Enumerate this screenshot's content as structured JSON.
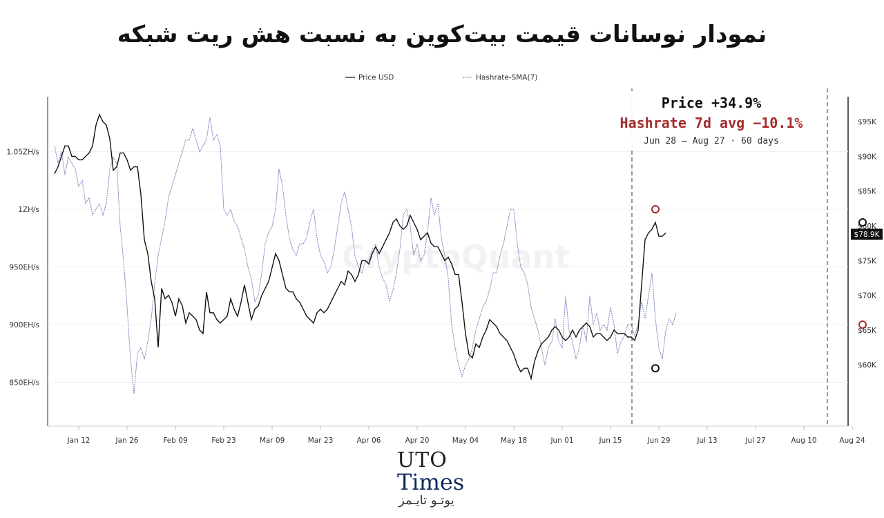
{
  "title": "نمودار نوسانات قیمت بیت‌کوین به نسبت هش ریت شبکه",
  "watermark": "CryptoQuant",
  "logo": {
    "line1": "UTO",
    "line2": "Times",
    "line3": "یوتـو تایـمز"
  },
  "annotations": {
    "price_change": "Price +34.9%",
    "hashrate_change": "Hashrate 7d avg −10.1%",
    "range": "Jun 28 – Aug 27 · 60 days",
    "price_badge": "$78.9K"
  },
  "colors": {
    "price": "#111111",
    "hashrate": "#7a7fb8",
    "accent_red": "#a32c2c",
    "marker_dark": "#111111"
  },
  "chart_data": {
    "type": "line",
    "x_ticks": [
      "Jan 12",
      "Jan 26",
      "Feb 09",
      "Feb 23",
      "Mar 09",
      "Mar 23",
      "Apr 06",
      "Apr 20",
      "May 04",
      "May 18",
      "Jun 01",
      "Jun 15",
      "Jun 29",
      "Jul 13",
      "Jul 27",
      "Aug 10",
      "Aug 24"
    ],
    "left_axis": {
      "ticks": [
        "1.05ZH/s",
        "1ZH/s",
        "950EH/s",
        "900EH/s",
        "850EH/s"
      ],
      "values": [
        1050,
        1000,
        950,
        900,
        850
      ],
      "unit": "EH/s",
      "range": [
        820,
        1100
      ]
    },
    "right_axis": {
      "ticks": [
        "$95K",
        "$90K",
        "$85K",
        "$80K",
        "$75K",
        "$70K",
        "$65K",
        "$60K"
      ],
      "values": [
        95,
        90,
        85,
        80,
        75,
        70,
        65,
        60
      ],
      "unit": "K USD",
      "range": [
        56,
        98
      ]
    },
    "legend": {
      "position": "top-center",
      "entries": [
        "Price USD",
        "Hashrate-SMA(7)"
      ]
    },
    "series": [
      {
        "name": "Price USD",
        "axis": "right",
        "start_date": "Jan 05",
        "values": [
          87.5,
          88.5,
          90,
          91.5,
          91.5,
          90,
          90,
          89.5,
          89.5,
          90,
          90.5,
          91.5,
          94.5,
          96,
          95,
          94.5,
          92.5,
          88,
          88.5,
          90.5,
          90.5,
          89.5,
          88,
          88.5,
          88.5,
          84.5,
          78,
          76,
          72,
          69.5,
          62.5,
          71,
          69.5,
          70,
          69,
          67,
          69.5,
          68.5,
          66,
          67.5,
          67,
          66.5,
          65,
          64.5,
          70.5,
          67.5,
          67.5,
          66.5,
          66,
          66.5,
          67,
          69.5,
          68,
          67,
          69,
          71.5,
          69,
          66.5,
          68,
          68.5,
          70,
          71,
          72,
          74,
          76,
          75,
          73,
          71,
          70.5,
          70.5,
          69.5,
          69,
          68,
          67,
          66.5,
          66,
          67.5,
          68,
          67.5,
          68,
          69,
          70,
          71,
          72,
          71.5,
          73.5,
          73,
          72,
          73,
          75,
          75,
          74.5,
          76,
          77,
          76,
          77,
          78,
          79,
          80.5,
          81,
          80,
          79.5,
          80,
          81.5,
          80.5,
          79.5,
          78,
          78.5,
          79,
          77.5,
          77,
          77,
          76,
          75,
          75.5,
          74.5,
          73,
          73,
          69,
          64.5,
          61.5,
          61,
          63,
          62.5,
          64,
          65,
          66.5,
          66,
          65.5,
          64.5,
          64,
          63.5,
          62.5,
          61.5,
          60,
          59,
          59.5,
          59.5,
          58,
          60.5,
          62,
          63,
          63.5,
          64,
          65,
          65.5,
          65,
          64,
          63.5,
          64,
          65,
          64,
          65,
          65.5,
          66,
          65.5,
          64,
          64.5,
          64.5,
          64,
          63.5,
          64,
          65,
          64.5,
          64.5,
          64.5,
          64,
          64,
          63.5,
          65,
          71.5,
          78,
          79,
          79.5,
          80.5,
          78.5,
          78.5,
          79
        ]
      },
      {
        "name": "Hashrate-SMA(7)",
        "axis": "left",
        "start_date": "Jan 05",
        "values": [
          1055,
          1040,
          1050,
          1030,
          1045,
          1040,
          1035,
          1020,
          1025,
          1005,
          1010,
          995,
          1000,
          1005,
          995,
          1005,
          1035,
          1045,
          1040,
          985,
          955,
          915,
          870,
          840,
          875,
          880,
          870,
          885,
          905,
          935,
          960,
          975,
          990,
          1010,
          1020,
          1030,
          1040,
          1050,
          1060,
          1060,
          1070,
          1060,
          1050,
          1055,
          1060,
          1080,
          1060,
          1065,
          1055,
          1000,
          995,
          1000,
          990,
          985,
          975,
          965,
          950,
          940,
          920,
          925,
          945,
          970,
          980,
          985,
          1000,
          1035,
          1020,
          995,
          975,
          965,
          960,
          970,
          970,
          975,
          990,
          1000,
          975,
          960,
          955,
          945,
          950,
          965,
          985,
          1005,
          1015,
          1000,
          985,
          960,
          950,
          945,
          955,
          955,
          965,
          970,
          950,
          940,
          935,
          920,
          930,
          945,
          965,
          995,
          1000,
          985,
          960,
          970,
          955,
          960,
          980,
          1010,
          995,
          1005,
          975,
          960,
          940,
          900,
          880,
          865,
          855,
          865,
          870,
          880,
          895,
          905,
          915,
          920,
          930,
          945,
          945,
          960,
          970,
          985,
          1000,
          1000,
          970,
          950,
          945,
          935,
          915,
          905,
          895,
          880,
          865,
          880,
          885,
          905,
          885,
          880,
          925,
          895,
          885,
          870,
          880,
          900,
          885,
          925,
          900,
          910,
          895,
          900,
          895,
          915,
          900,
          875,
          885,
          890,
          900,
          900,
          890,
          900,
          920,
          905,
          925,
          945,
          905,
          880,
          870,
          895,
          905,
          900,
          910
        ]
      }
    ],
    "markers": [
      {
        "series": "Hashrate-SMA(7)",
        "x": "Jun 28",
        "y": 1000,
        "color": "#a32c2c"
      },
      {
        "series": "Price USD",
        "x": "Jun 28",
        "y": 59.5,
        "color": "#111111"
      },
      {
        "series": "Price USD",
        "x": "Aug 27",
        "y": 80.5,
        "color": "#111111"
      },
      {
        "series": "Hashrate-SMA(7)",
        "x": "Aug 27",
        "y": 900,
        "color": "#a32c2c"
      }
    ]
  }
}
